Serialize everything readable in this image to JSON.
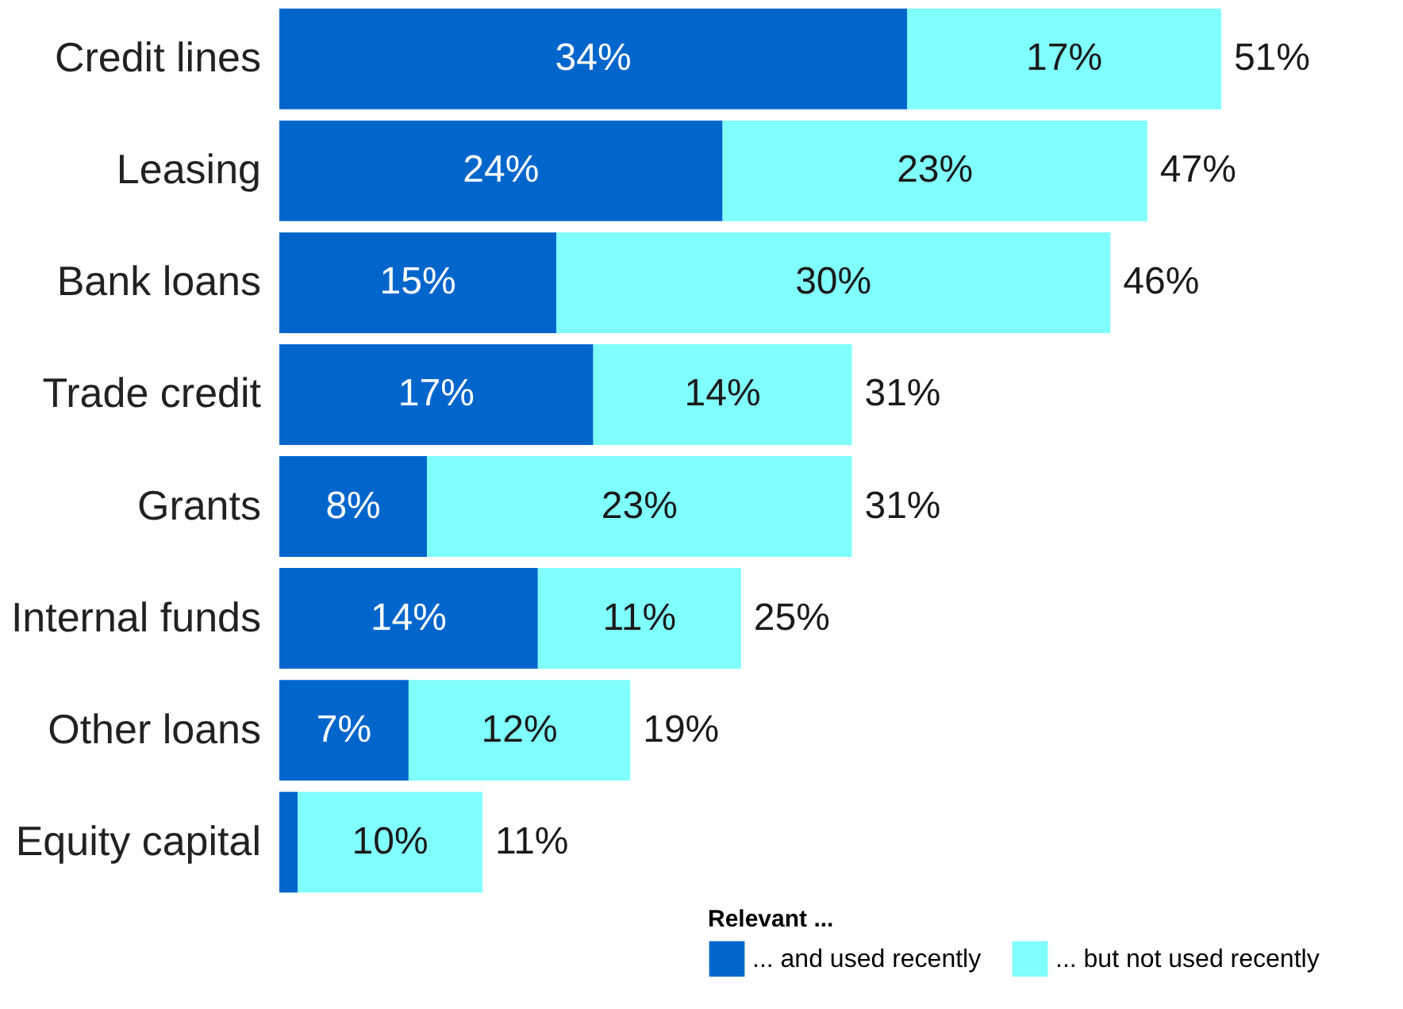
{
  "chart_data": {
    "type": "bar",
    "orientation": "horizontal",
    "stacked": true,
    "categories": [
      "Credit lines",
      "Leasing",
      "Bank loans",
      "Trade credit",
      "Grants",
      "Internal funds",
      "Other loans",
      "Equity capital"
    ],
    "series": [
      {
        "name": "... and used recently",
        "color": "#0066cc",
        "values": [
          34,
          24,
          15,
          17,
          8,
          14,
          7,
          1
        ],
        "value_labels": [
          "34%",
          "24%",
          "15%",
          "17%",
          "8%",
          "14%",
          "7%",
          null
        ]
      },
      {
        "name": "... but not used recently",
        "color": "#80ffff",
        "values": [
          17,
          23,
          30,
          14,
          23,
          11,
          12,
          10
        ],
        "value_labels": [
          "17%",
          "23%",
          "30%",
          "14%",
          "23%",
          "11%",
          "12%",
          "10%"
        ]
      }
    ],
    "totals": [
      "51%",
      "47%",
      "46%",
      "31%",
      "31%",
      "25%",
      "19%",
      "11%"
    ],
    "legend_title": "Relevant ...",
    "legend": "bottom right",
    "tick_labels": "y"
  }
}
